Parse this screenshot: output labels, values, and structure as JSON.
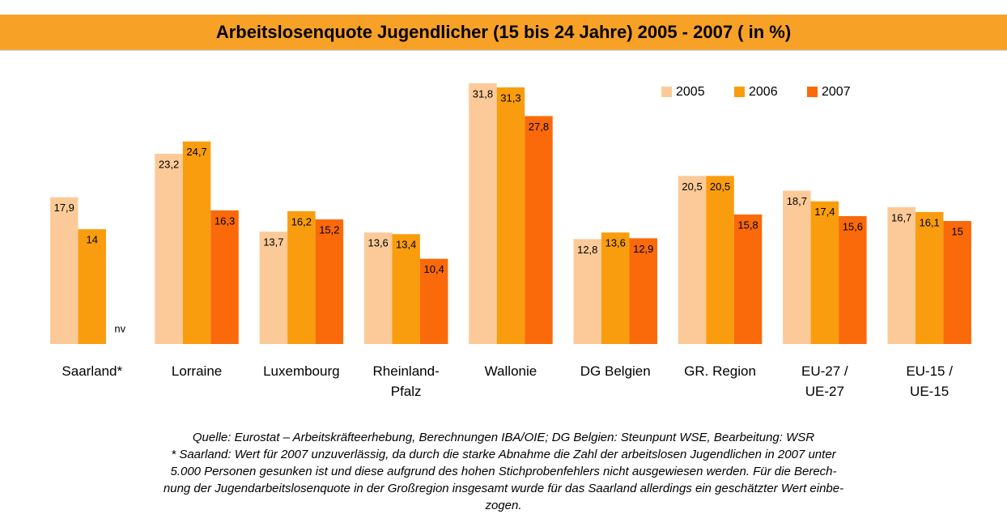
{
  "chart_data": {
    "type": "bar",
    "title": "Arbeitslosenquote Jugendlicher (15 bis 24 Jahre) 2005 - 2007 ( in %)",
    "categories": [
      "Saarland*",
      "Lorraine",
      "Luxembourg",
      "Rheinland-\nPfalz",
      "Wallonie",
      "DG Belgien",
      "GR. Region",
      "EU-27 /\nUE-27",
      "EU-15 /\nUE-15"
    ],
    "series": [
      {
        "name": "2005",
        "color": "#fcca98",
        "values": [
          17.9,
          23.2,
          13.7,
          13.6,
          31.8,
          12.8,
          20.5,
          18.7,
          16.7
        ],
        "value_labels": [
          "17,9",
          "23,2",
          "13,7",
          "13,6",
          "31,8",
          "12,8",
          "20,5",
          "18,7",
          "16,7"
        ]
      },
      {
        "name": "2006",
        "color": "#f99d0e",
        "values": [
          14,
          24.7,
          16.2,
          13.4,
          31.3,
          13.6,
          20.5,
          17.4,
          16.1
        ],
        "value_labels": [
          "14",
          "24,7",
          "16,2",
          "13,4",
          "31,3",
          "13,6",
          "20,5",
          "17,4",
          "16,1"
        ]
      },
      {
        "name": "2007",
        "color": "#fa6a0a",
        "values": [
          null,
          16.3,
          15.2,
          10.4,
          27.8,
          12.9,
          15.8,
          15.6,
          15
        ],
        "value_labels": [
          "nv",
          "16,3",
          "15,2",
          "10,4",
          "27,8",
          "12,9",
          "15,8",
          "15,6",
          "15"
        ]
      }
    ],
    "legend": "top-right",
    "notes": [
      "Quelle: Eurostat – Arbeitskräfteerhebung, Berechnungen IBA/OIE; DG Belgien: Steunpunt WSE, Bearbeitung: WSR",
      "* Saarland: Wert für 2007 unzuverlässig, da durch die starke Abnahme die Zahl der arbeitslosen Jugendlichen in 2007 unter",
      "5.000 Personen gesunken ist und diese aufgrund des hohen Stichprobenfehlers nicht ausgewiesen werden. Für die Berech-",
      "nung der Jugendarbeitslosenquote in der Großregion insgesamt wurde für das Saarland allerdings ein geschätzter Wert einbe-",
      "zogen."
    ]
  }
}
